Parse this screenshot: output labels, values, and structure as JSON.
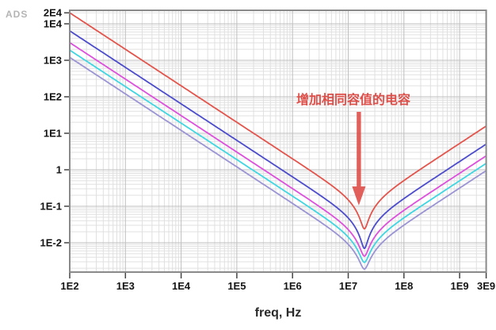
{
  "header": {
    "logo": "ADS"
  },
  "annotation": {
    "text": "增加相同容值的电容",
    "arrow_direction": "down",
    "points_to": "resonance dip of the red curve",
    "color": "#de4f4a"
  },
  "chart_data": {
    "type": "line",
    "title": "",
    "xlabel": "freq, Hz",
    "ylabel": "",
    "x_scale": "log",
    "y_scale": "log",
    "x_range": [
      100,
      3000000000
    ],
    "y_range": [
      0.0015,
      23000
    ],
    "grid": true,
    "legend": "none",
    "x_ticks": [
      {
        "label": "1E2",
        "value": 100
      },
      {
        "label": "1E3",
        "value": 1000
      },
      {
        "label": "1E4",
        "value": 10000
      },
      {
        "label": "1E5",
        "value": 100000
      },
      {
        "label": "1E6",
        "value": 1000000
      },
      {
        "label": "1E7",
        "value": 10000000
      },
      {
        "label": "1E8",
        "value": 100000000
      },
      {
        "label": "1E9",
        "value": 1000000000
      },
      {
        "label": "3E9",
        "value": 3000000000
      }
    ],
    "y_ticks": [
      {
        "label": "2E4",
        "value": 20000
      },
      {
        "label": "1E4",
        "value": 10000
      },
      {
        "label": "1E3",
        "value": 1000
      },
      {
        "label": "1E2",
        "value": 100
      },
      {
        "label": "1E1",
        "value": 10
      },
      {
        "label": "1",
        "value": 1
      },
      {
        "label": "1E-1",
        "value": 0.1
      },
      {
        "label": "1E-2",
        "value": 0.01
      }
    ],
    "resonance_hz": 19500000,
    "series": [
      {
        "name": "purple",
        "color": "#9a94d4",
        "xc_coeff": 120000,
        "esr": 0.0019,
        "z_at_100hz": 1200,
        "z_min": 0.0019,
        "z_at_3ghz": 0.95
      },
      {
        "name": "cyan",
        "color": "#3fd6e2",
        "xc_coeff": 190000,
        "esr": 0.0029,
        "z_at_100hz": 1900,
        "z_min": 0.0029,
        "z_at_3ghz": 1.5
      },
      {
        "name": "magenta",
        "color": "#dd50dc",
        "xc_coeff": 305000,
        "esr": 0.0043,
        "z_at_100hz": 3050,
        "z_min": 0.0043,
        "z_at_3ghz": 2.4
      },
      {
        "name": "blue",
        "color": "#4c4ccc",
        "xc_coeff": 640000,
        "esr": 0.007,
        "z_at_100hz": 6400,
        "z_min": 0.007,
        "z_at_3ghz": 5.1
      },
      {
        "name": "red",
        "color": "#e2544c",
        "xc_coeff": 2000000,
        "esr": 0.024,
        "z_at_100hz": 20000,
        "z_min": 0.024,
        "z_at_3ghz": 15.8
      }
    ]
  }
}
